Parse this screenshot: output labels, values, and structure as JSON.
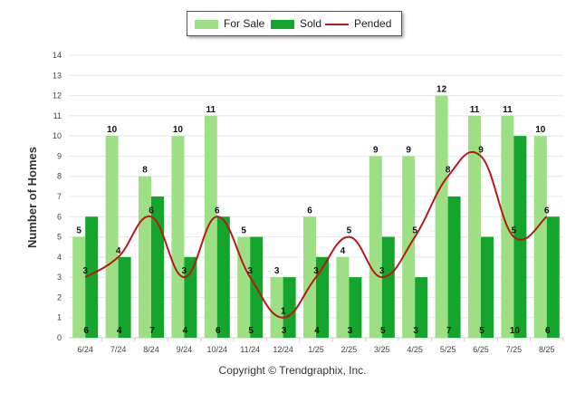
{
  "chart_data": {
    "type": "bar",
    "title": "",
    "ylabel": "Number of Homes",
    "xlabel": "",
    "ylim": [
      0,
      14
    ],
    "yticks": [
      0,
      1,
      2,
      3,
      4,
      5,
      6,
      7,
      8,
      9,
      10,
      11,
      12,
      13,
      14
    ],
    "grid": true,
    "legend_position": "top-center",
    "categories": [
      "6/24",
      "7/24",
      "8/24",
      "9/24",
      "10/24",
      "11/24",
      "12/24",
      "1/25",
      "2/25",
      "3/25",
      "4/25",
      "5/25",
      "6/25",
      "7/25",
      "8/25"
    ],
    "series": [
      {
        "name": "For Sale",
        "kind": "bar",
        "color": "#9ddf84",
        "values": [
          5,
          10,
          8,
          10,
          11,
          5,
          3,
          6,
          4,
          9,
          9,
          12,
          11,
          11,
          10
        ]
      },
      {
        "name": "Sold",
        "kind": "bar",
        "color": "#14a52c",
        "values": [
          6,
          4,
          7,
          4,
          6,
          5,
          3,
          4,
          3,
          5,
          3,
          7,
          5,
          10,
          6
        ]
      },
      {
        "name": "Pended",
        "kind": "line",
        "color": "#b81818",
        "values": [
          3,
          4,
          6,
          3,
          6,
          3,
          1,
          3,
          5,
          3,
          5,
          8,
          9,
          5,
          6
        ]
      }
    ]
  },
  "footer": {
    "copyright": "Copyright © Trendgraphix, Inc."
  }
}
